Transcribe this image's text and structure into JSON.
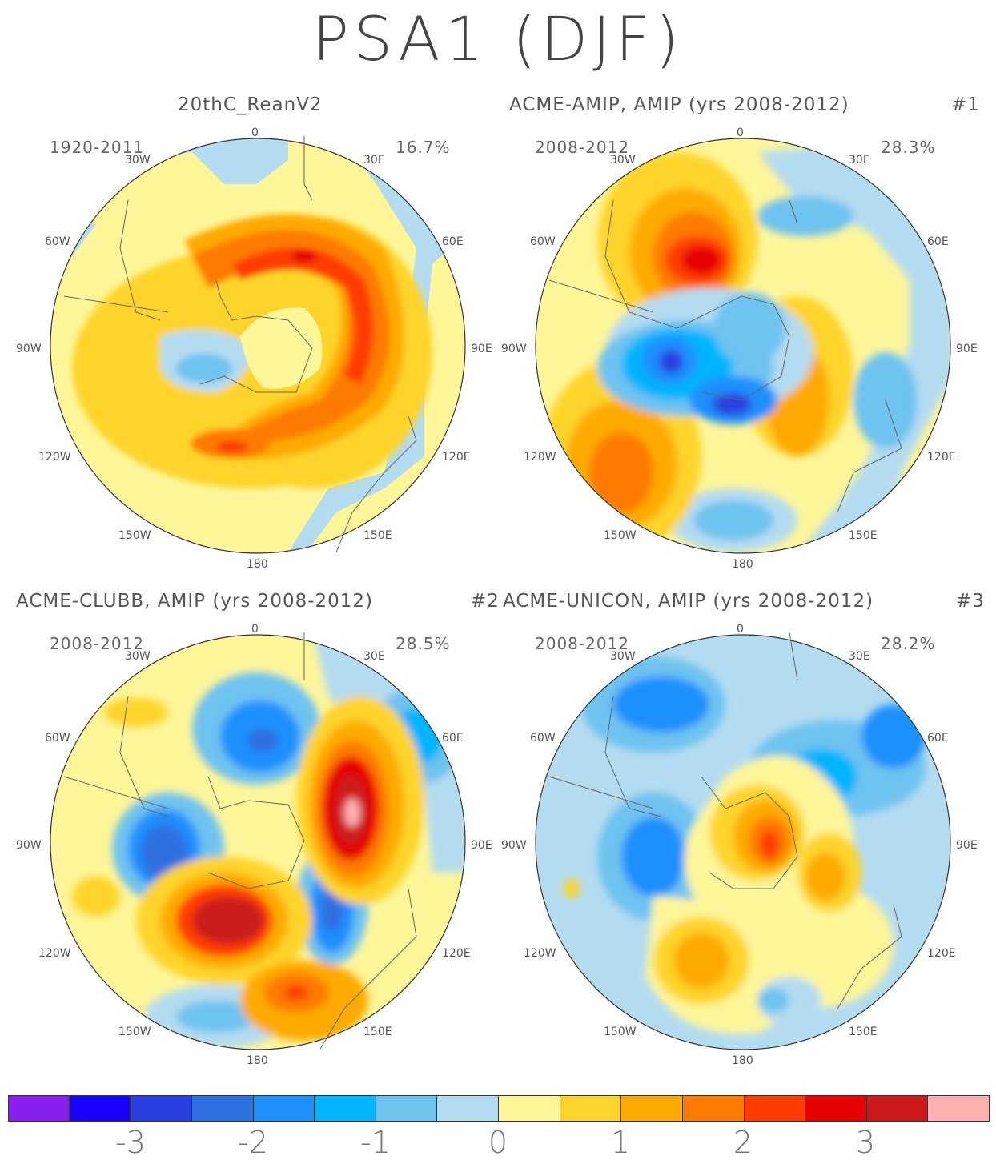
{
  "title": "PSA1 (DJF)",
  "panels": [
    {
      "title": "20thC_ReanV2",
      "tag": "",
      "years": "1920-2011",
      "pct": "16.7%"
    },
    {
      "title": "ACME-AMIP, AMIP (yrs 2008-2012)",
      "tag": "#1",
      "years": "2008-2012",
      "pct": "28.3%"
    },
    {
      "title": "ACME-CLUBB, AMIP (yrs 2008-2012)",
      "tag": "#2",
      "years": "2008-2012",
      "pct": "28.5%"
    },
    {
      "title": "ACME-UNICON, AMIP (yrs 2008-2012)",
      "tag": "#3",
      "years": "2008-2012",
      "pct": "28.2%"
    }
  ],
  "lon_labels": {
    "top": "0",
    "tl": "30W",
    "tr": "30E",
    "ul": "60W",
    "ur": "60E",
    "l": "90W",
    "r": "90E",
    "ll": "120W",
    "lr": "120E",
    "bl": "150W",
    "br": "150E",
    "bottom": "180"
  },
  "colorbar": {
    "colors": [
      "#8a1ff0",
      "#1a00ff",
      "#2a3fe0",
      "#2e6fe0",
      "#1e90ff",
      "#00b4ff",
      "#6ec3f0",
      "#b4dcf0",
      "#fff69a",
      "#ffd42a",
      "#ffaa00",
      "#ff7a00",
      "#ff3c00",
      "#e60000",
      "#cc1a1a",
      "#ffb0b0"
    ],
    "tick_labels": [
      "-3",
      "-2",
      "-1",
      "0",
      "1",
      "2",
      "3"
    ]
  }
}
